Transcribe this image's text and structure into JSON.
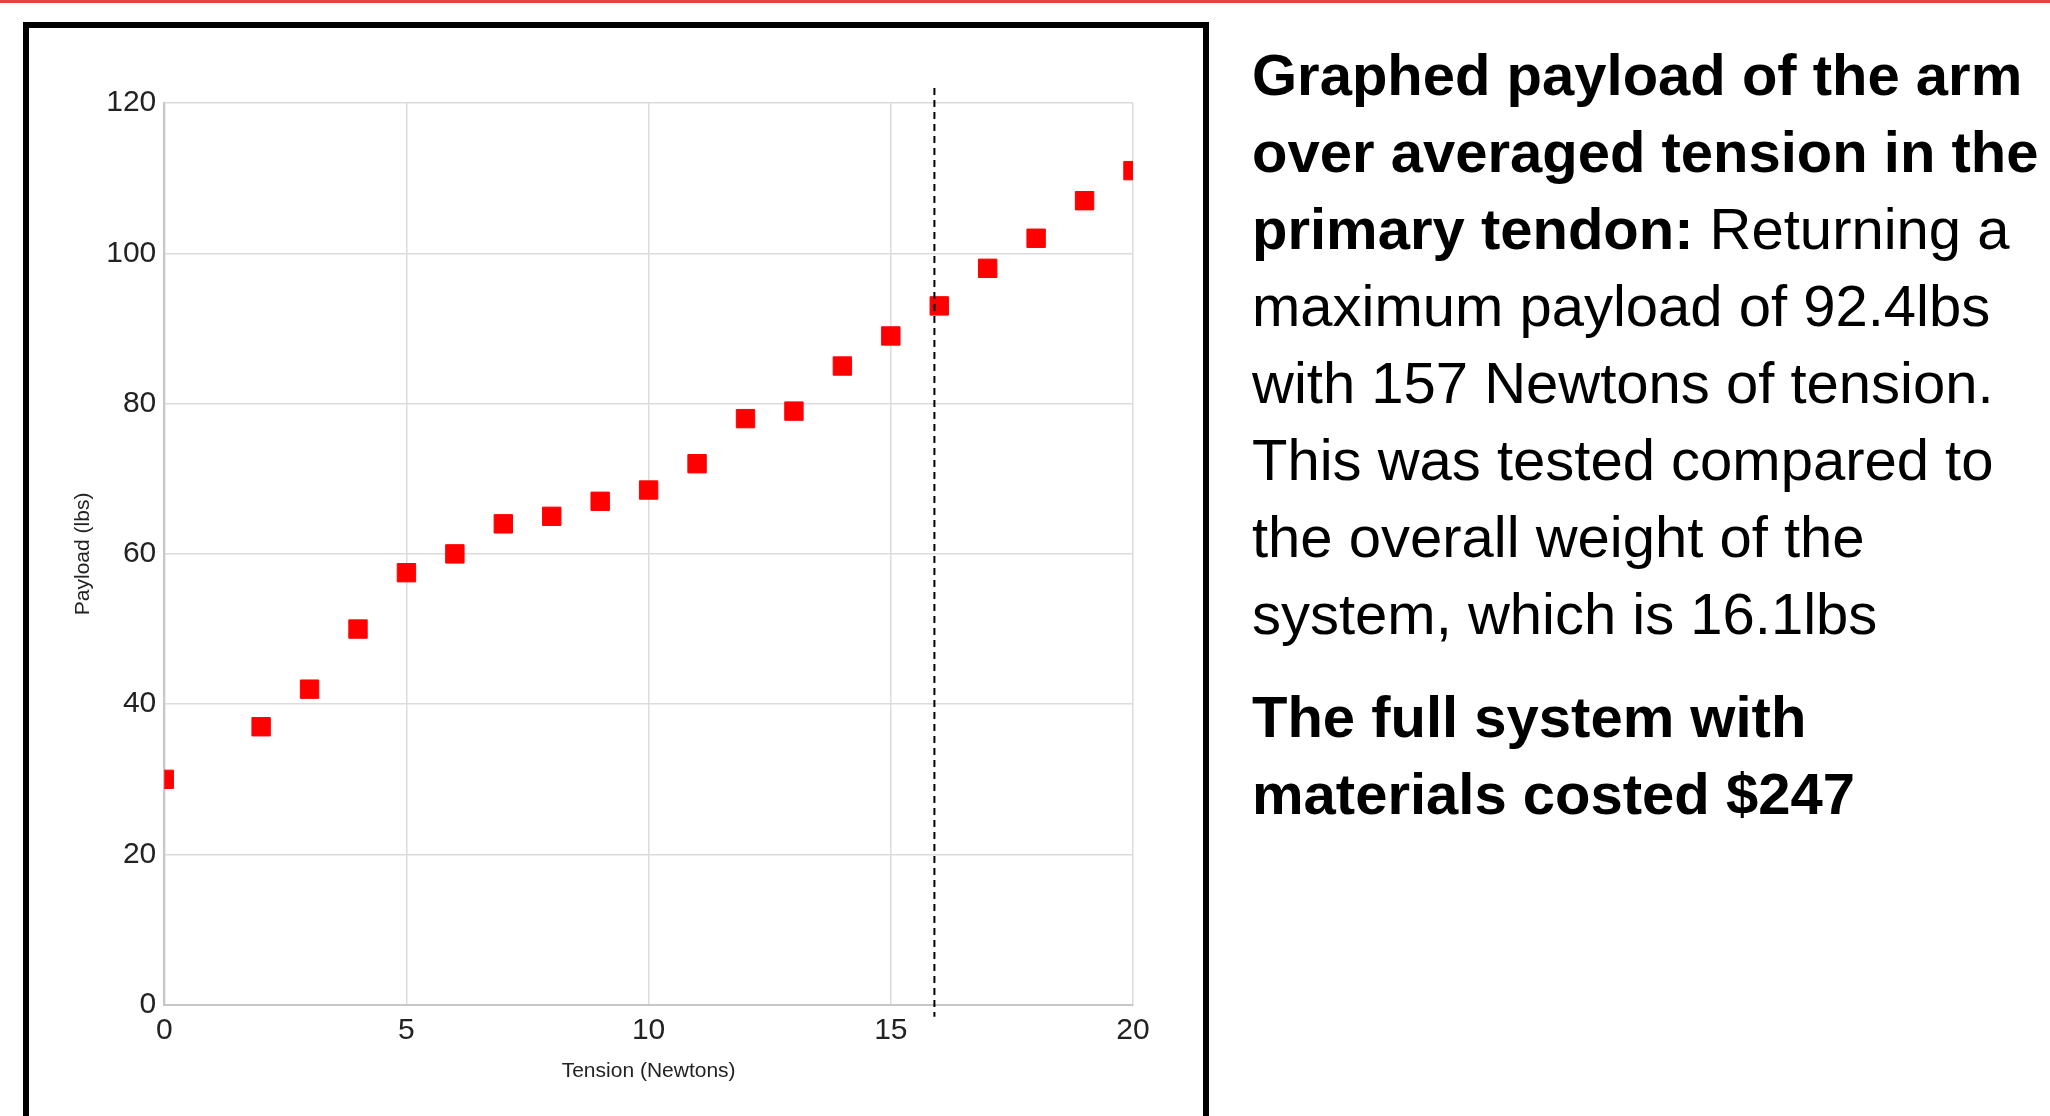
{
  "chart_data": {
    "type": "scatter",
    "xlabel": "Tension (Newtons)",
    "ylabel": "Payload (lbs)",
    "x": [
      0,
      2,
      3,
      4,
      5,
      6,
      7,
      8,
      9,
      10,
      11,
      12,
      13,
      14,
      15,
      16,
      17,
      18,
      19,
      20
    ],
    "series": [
      {
        "color": "#ff0000",
        "values": [
          30,
          37,
          42,
          50,
          57.5,
          60,
          64,
          65,
          67,
          68.5,
          72,
          78,
          79,
          85,
          89,
          93,
          98,
          102,
          107,
          111
        ]
      }
    ],
    "xlim": [
      0,
      20
    ],
    "xticks": [
      0,
      5,
      10,
      15,
      20
    ],
    "ylim": [
      0,
      120
    ],
    "yticks": [
      0,
      20,
      40,
      60,
      80,
      100,
      120
    ],
    "grid": true,
    "legend": false,
    "marker": "square",
    "ref_lines": [
      {
        "axis": "x",
        "value": 15.9,
        "color": "#000000",
        "line_style": "dashed"
      }
    ],
    "annotations": [
      "Graphed payload of the arm over averaged tension in the primary tendon:",
      "Returning a maximum payload of 92.4lbs with 157 Newtons of tension. This was tested compared to the overall weight of the system, which is 16.1lbs",
      "The full system with materials costed $247"
    ]
  }
}
